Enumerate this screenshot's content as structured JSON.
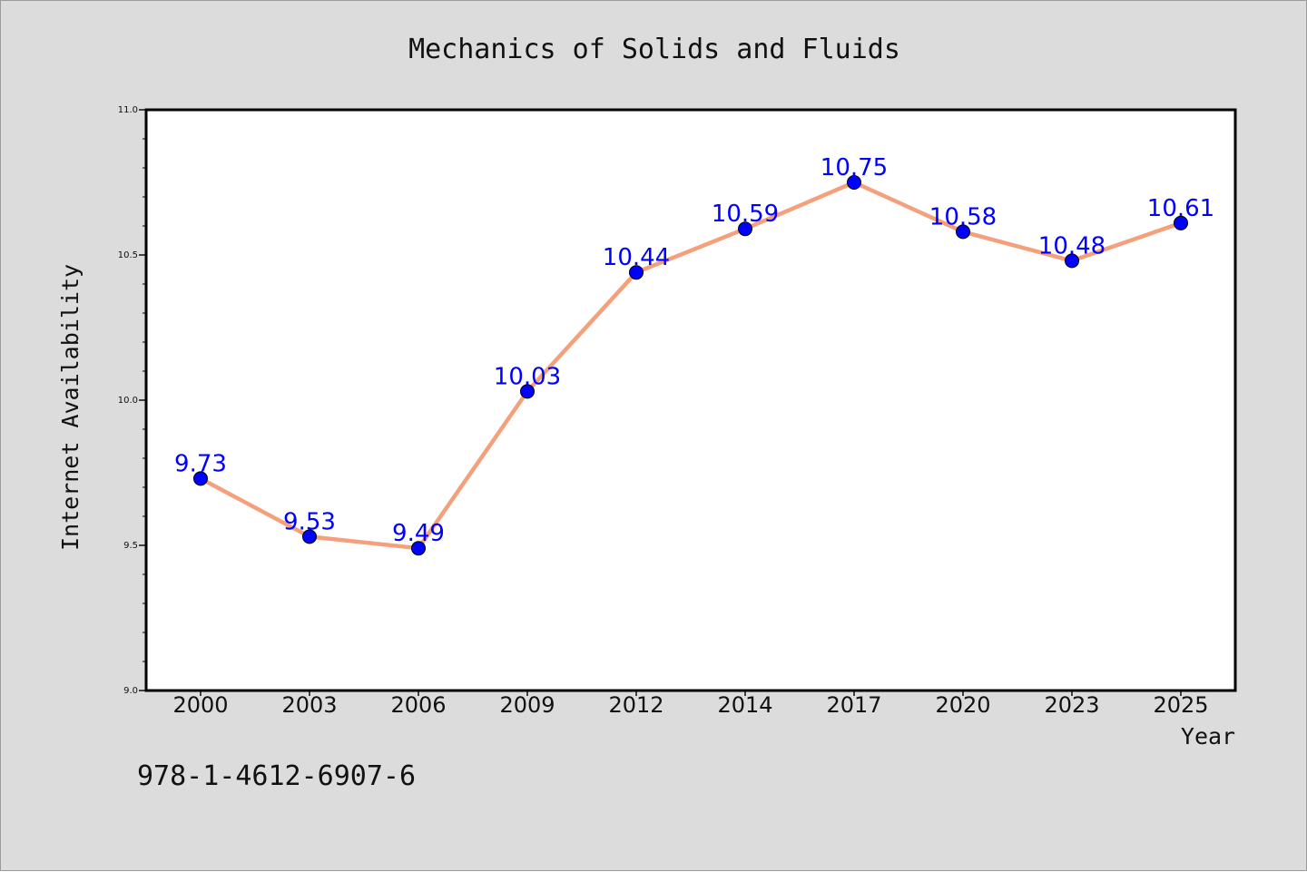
{
  "figure": {
    "background": "#dcdcdc",
    "plot_background": "#ffffff",
    "isbn": "978-1-4612-6907-6"
  },
  "chart_data": {
    "type": "line",
    "title": "Mechanics of Solids and Fluids",
    "xlabel": "Year",
    "ylabel": "Internet Availability",
    "categories": [
      "2000",
      "2003",
      "2006",
      "2009",
      "2012",
      "2014",
      "2017",
      "2020",
      "2023",
      "2025"
    ],
    "series": [
      {
        "values": [
          9.73,
          9.53,
          9.49,
          10.03,
          10.44,
          10.59,
          10.75,
          10.58,
          10.48,
          10.61
        ],
        "line_color": "#f4a07c",
        "marker_color": "#0000ff",
        "label_color": "#0000ff"
      }
    ],
    "data_labels": [
      "9.73",
      "9.53",
      "9.49",
      "10.03",
      "10.44",
      "10.59",
      "10.75",
      "10.58",
      "10.48",
      "10.61"
    ],
    "ylim": [
      9.0,
      11.0
    ],
    "y_ticks": [
      "9.0",
      "9.5",
      "10.0",
      "10.5",
      "11.0"
    ],
    "y_minor_step": 0.1,
    "grid": false,
    "legend": "none"
  }
}
